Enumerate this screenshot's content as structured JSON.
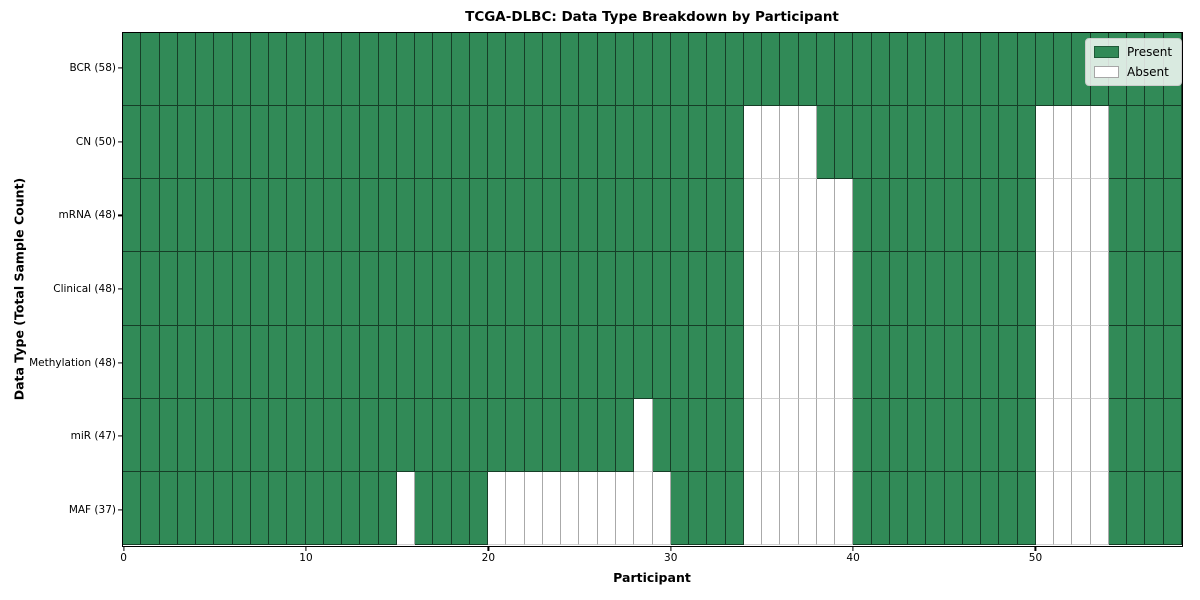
{
  "chart_data": {
    "type": "heatmap",
    "title": "TCGA-DLBC: Data Type Breakdown by Participant",
    "xlabel": "Participant",
    "ylabel": "Data Type (Total Sample Count)",
    "n_participants": 58,
    "x_ticks": [
      0,
      10,
      20,
      30,
      40,
      50
    ],
    "xlim": [
      0,
      58
    ],
    "grid": "cell-borders",
    "colors": {
      "present": "#318a57",
      "absent": "#ffffff"
    },
    "legend": {
      "position": "upper right",
      "entries": [
        {
          "label": "Present",
          "color": "#318a57"
        },
        {
          "label": "Absent",
          "color": "#ffffff"
        }
      ]
    },
    "rows": [
      {
        "label": "BCR (58)",
        "data_type": "BCR",
        "total_present": 58,
        "absent_columns": []
      },
      {
        "label": "CN (50)",
        "data_type": "CN",
        "total_present": 50,
        "absent_columns": [
          34,
          35,
          36,
          37,
          50,
          51,
          52,
          53
        ]
      },
      {
        "label": "mRNA (48)",
        "data_type": "mRNA",
        "total_present": 48,
        "absent_columns": [
          34,
          35,
          36,
          37,
          38,
          39,
          50,
          51,
          52,
          53
        ]
      },
      {
        "label": "Clinical (48)",
        "data_type": "Clinical",
        "total_present": 48,
        "absent_columns": [
          34,
          35,
          36,
          37,
          38,
          39,
          50,
          51,
          52,
          53
        ]
      },
      {
        "label": "Methylation (48)",
        "data_type": "Methylation",
        "total_present": 48,
        "absent_columns": [
          34,
          35,
          36,
          37,
          38,
          39,
          50,
          51,
          52,
          53
        ]
      },
      {
        "label": "miR (47)",
        "data_type": "miR",
        "total_present": 47,
        "absent_columns": [
          28,
          34,
          35,
          36,
          37,
          38,
          39,
          50,
          51,
          52,
          53
        ]
      },
      {
        "label": "MAF (37)",
        "data_type": "MAF",
        "total_present": 37,
        "absent_columns": [
          15,
          20,
          21,
          22,
          23,
          24,
          25,
          26,
          27,
          28,
          29,
          34,
          35,
          36,
          37,
          38,
          39,
          50,
          51,
          52,
          53
        ]
      }
    ]
  }
}
